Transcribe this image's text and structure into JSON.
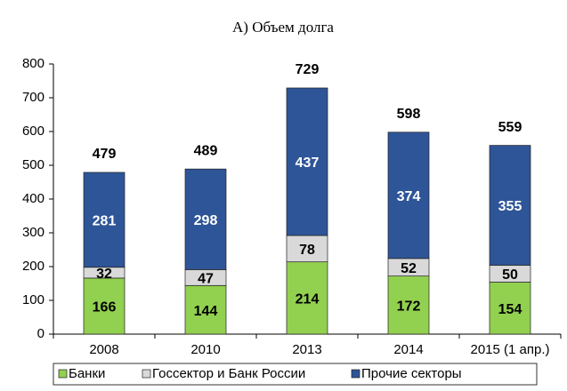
{
  "chart_data": {
    "type": "stacked_bar",
    "title": "А) Объем долга",
    "categories": [
      "2008",
      "2010",
      "2013",
      "2014",
      "2015 (1 апр.)"
    ],
    "series": [
      {
        "name": "Банки",
        "color": "#92d050",
        "label_color": "#000000",
        "values": [
          166,
          144,
          214,
          172,
          154
        ]
      },
      {
        "name": "Госсектор и Банк России",
        "color": "#d9d9d9",
        "label_color": "#000000",
        "values": [
          32,
          47,
          78,
          52,
          50
        ]
      },
      {
        "name": "Прочие секторы",
        "color": "#2e5597",
        "label_color": "#ffffff",
        "values": [
          281,
          298,
          437,
          374,
          355
        ]
      }
    ],
    "totals": [
      479,
      489,
      729,
      598,
      559
    ],
    "ylim": [
      0,
      800
    ],
    "yticks": [
      0,
      100,
      200,
      300,
      400,
      500,
      600,
      700,
      800
    ],
    "grid": false,
    "legend": "bottom"
  }
}
